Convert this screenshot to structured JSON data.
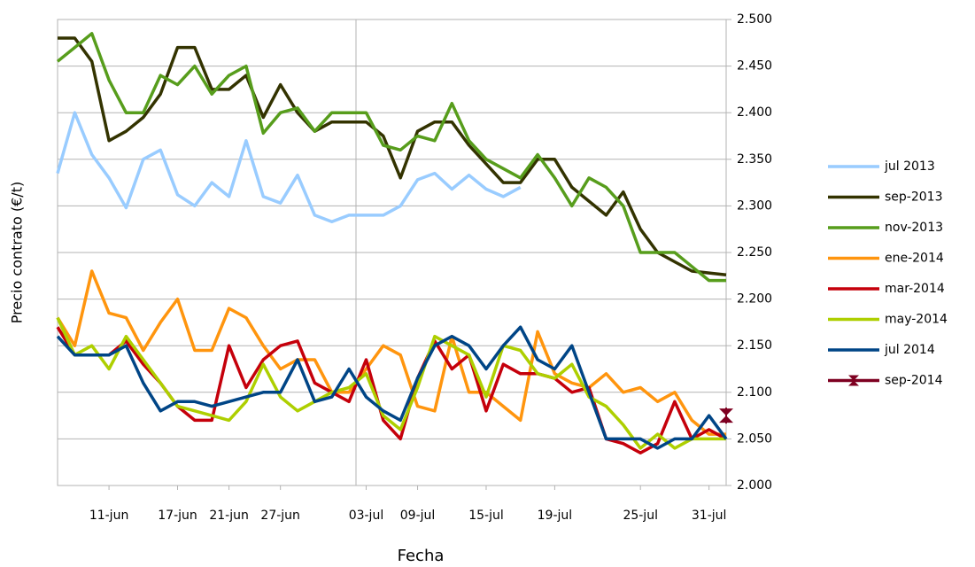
{
  "chart_data": {
    "type": "line",
    "x_label": "Fecha",
    "y_label": "Precio contrato (€/t)",
    "categories": [
      null,
      null,
      null,
      "11-jun",
      null,
      null,
      null,
      "17-jun",
      null,
      null,
      "21-jun",
      null,
      null,
      "27-jun",
      null,
      null,
      null,
      null,
      "03-jul",
      null,
      null,
      "09-jul",
      null,
      null,
      null,
      "15-jul",
      null,
      null,
      null,
      "19-jul",
      null,
      null,
      null,
      null,
      "25-jul",
      null,
      null,
      null,
      "31-jul",
      null
    ],
    "ylim": [
      2.0,
      2.5
    ],
    "yticks": [
      {
        "value": 2.0,
        "label": "2.000"
      },
      {
        "value": 2.05,
        "label": "2.050"
      },
      {
        "value": 2.1,
        "label": "2.100"
      },
      {
        "value": 2.15,
        "label": "2.150"
      },
      {
        "value": 2.2,
        "label": "2.200"
      },
      {
        "value": 2.25,
        "label": "2.250"
      },
      {
        "value": 2.3,
        "label": "2.300"
      },
      {
        "value": 2.35,
        "label": "2.350"
      },
      {
        "value": 2.4,
        "label": "2.400"
      },
      {
        "value": 2.45,
        "label": "2.450"
      },
      {
        "value": 2.5,
        "label": "2.500"
      }
    ],
    "grid": true,
    "legend": "right",
    "series": [
      {
        "name": "jul 2013",
        "color": "#99ccff",
        "values": [
          2.335,
          2.4,
          2.355,
          2.33,
          2.298,
          2.35,
          2.36,
          2.312,
          2.3,
          2.325,
          2.31,
          2.37,
          2.31,
          2.303,
          2.333,
          2.29,
          2.283,
          2.29,
          2.29,
          2.29,
          2.3,
          2.328,
          2.335,
          2.318,
          2.333,
          2.318,
          2.31,
          2.32,
          null,
          null,
          null,
          null,
          null,
          null,
          null,
          null,
          null,
          null,
          null,
          null
        ]
      },
      {
        "name": "sep-2013",
        "color": "#333300",
        "values": [
          2.48,
          2.48,
          2.455,
          2.37,
          2.38,
          2.395,
          2.42,
          2.47,
          2.47,
          2.425,
          2.425,
          2.44,
          2.395,
          2.43,
          2.4,
          2.38,
          2.39,
          2.39,
          2.39,
          2.375,
          2.33,
          2.38,
          2.39,
          2.39,
          2.365,
          2.345,
          2.325,
          2.325,
          2.35,
          2.35,
          2.32,
          2.305,
          2.29,
          2.315,
          2.275,
          2.25,
          2.24,
          2.23,
          2.228,
          2.226
        ]
      },
      {
        "name": "nov-2013",
        "color": "#579d1c",
        "values": [
          2.455,
          2.47,
          2.485,
          2.435,
          2.4,
          2.4,
          2.44,
          2.43,
          2.45,
          2.42,
          2.44,
          2.45,
          2.378,
          2.4,
          2.405,
          2.38,
          2.4,
          2.4,
          2.4,
          2.365,
          2.36,
          2.375,
          2.37,
          2.41,
          2.37,
          2.35,
          2.34,
          2.33,
          2.355,
          2.33,
          2.3,
          2.33,
          2.32,
          2.3,
          2.25,
          2.25,
          2.25,
          2.235,
          2.22,
          2.22
        ]
      },
      {
        "name": "ene-2014",
        "color": "#ff950e",
        "values": [
          2.18,
          2.15,
          2.23,
          2.185,
          2.18,
          2.145,
          2.175,
          2.2,
          2.145,
          2.145,
          2.19,
          2.18,
          2.15,
          2.125,
          2.135,
          2.135,
          2.1,
          2.1,
          2.125,
          2.15,
          2.14,
          2.085,
          2.08,
          2.16,
          2.1,
          2.1,
          2.085,
          2.07,
          2.165,
          2.12,
          2.11,
          2.105,
          2.12,
          2.1,
          2.105,
          2.09,
          2.1,
          2.07,
          2.055,
          2.055
        ]
      },
      {
        "name": "mar-2014",
        "color": "#c5000b",
        "values": [
          2.17,
          2.14,
          2.14,
          2.14,
          2.155,
          2.13,
          2.11,
          2.085,
          2.07,
          2.07,
          2.15,
          2.105,
          2.135,
          2.15,
          2.155,
          2.11,
          2.1,
          2.09,
          2.135,
          2.07,
          2.05,
          2.115,
          2.155,
          2.125,
          2.14,
          2.08,
          2.13,
          2.12,
          2.12,
          2.115,
          2.1,
          2.105,
          2.05,
          2.045,
          2.035,
          2.045,
          2.09,
          2.05,
          2.06,
          2.05
        ]
      },
      {
        "name": "may-2014",
        "color": "#aecf00",
        "values": [
          2.18,
          2.14,
          2.15,
          2.125,
          2.16,
          2.135,
          2.11,
          2.085,
          2.08,
          2.075,
          2.07,
          2.09,
          2.13,
          2.095,
          2.08,
          2.09,
          2.1,
          2.105,
          2.12,
          2.075,
          2.06,
          2.105,
          2.16,
          2.15,
          2.14,
          2.095,
          2.15,
          2.145,
          2.12,
          2.115,
          2.13,
          2.095,
          2.085,
          2.065,
          2.04,
          2.055,
          2.04,
          2.05,
          2.05,
          2.05
        ]
      },
      {
        "name": "jul 2014",
        "color": "#004586",
        "values": [
          2.16,
          2.14,
          2.14,
          2.14,
          2.15,
          2.11,
          2.08,
          2.09,
          2.09,
          2.085,
          2.09,
          2.095,
          2.1,
          2.1,
          2.135,
          2.09,
          2.095,
          2.125,
          2.095,
          2.08,
          2.07,
          2.115,
          2.15,
          2.16,
          2.15,
          2.125,
          2.15,
          2.17,
          2.135,
          2.125,
          2.15,
          2.1,
          2.05,
          2.05,
          2.05,
          2.04,
          2.05,
          2.05,
          2.075,
          2.05
        ]
      },
      {
        "name": "sep-2014",
        "color": "#7e0021",
        "marker": "hourglass",
        "values": [
          null,
          null,
          null,
          null,
          null,
          null,
          null,
          null,
          null,
          null,
          null,
          null,
          null,
          null,
          null,
          null,
          null,
          null,
          null,
          null,
          null,
          null,
          null,
          null,
          null,
          null,
          null,
          null,
          null,
          null,
          null,
          null,
          null,
          null,
          null,
          null,
          null,
          null,
          null,
          2.075
        ]
      }
    ]
  }
}
